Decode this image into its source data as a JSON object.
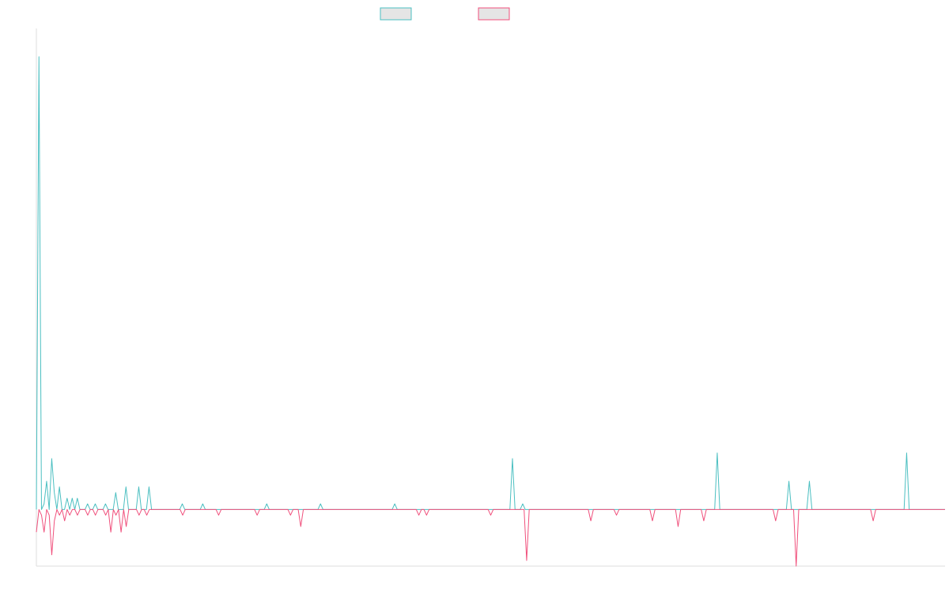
{
  "chart_data": {
    "type": "line",
    "title": "",
    "xlabel": "",
    "ylabel": "",
    "grid": false,
    "legend": "top-center",
    "ylim": [
      -10,
      85
    ],
    "colors": {
      "teal": "#4bbfc1",
      "pink": "#f0507c",
      "axis": "#dddddd",
      "legend_fill": "#e5e5e5"
    },
    "series": [
      {
        "color": "#4bbfc1",
        "values": [
          0,
          80,
          0,
          1,
          5,
          0,
          9,
          3,
          0,
          4,
          0,
          0,
          2,
          0,
          2,
          0,
          2,
          0,
          0,
          0,
          1,
          0,
          0,
          1,
          0,
          0,
          0,
          1,
          0,
          0,
          0,
          3,
          0,
          0,
          0,
          4,
          0,
          0,
          0,
          0,
          4,
          0,
          0,
          0,
          4,
          0,
          0,
          0,
          0,
          0,
          0,
          0,
          0,
          0,
          0,
          0,
          0,
          1,
          0,
          0,
          0,
          0,
          0,
          0,
          0,
          1,
          0,
          0,
          0,
          0,
          0,
          0,
          0,
          0,
          0,
          0,
          0,
          0,
          0,
          0,
          0,
          0,
          0,
          0,
          0,
          0,
          0,
          0,
          0,
          0,
          1,
          0,
          0,
          0,
          0,
          0,
          0,
          0,
          0,
          0,
          0,
          0,
          0,
          0,
          0,
          0,
          0,
          0,
          0,
          0,
          0,
          1,
          0,
          0,
          0,
          0,
          0,
          0,
          0,
          0,
          0,
          0,
          0,
          0,
          0,
          0,
          0,
          0,
          0,
          0,
          0,
          0,
          0,
          0,
          0,
          0,
          0,
          0,
          0,
          0,
          1,
          0,
          0,
          0,
          0,
          0,
          0,
          0,
          0,
          0,
          0,
          0,
          0,
          0,
          0,
          0,
          0,
          0,
          0,
          0,
          0,
          0,
          0,
          0,
          0,
          0,
          0,
          0,
          0,
          0,
          0,
          0,
          0,
          0,
          0,
          0,
          0,
          0,
          0,
          0,
          0,
          0,
          0,
          0,
          0,
          0,
          9,
          0,
          0,
          0,
          1,
          0,
          0,
          0,
          0,
          0,
          0,
          0,
          0,
          0,
          0,
          0,
          0,
          0,
          0,
          0,
          0,
          0,
          0,
          0,
          0,
          0,
          0,
          0,
          0,
          0,
          0,
          0,
          0,
          0,
          0,
          0,
          0,
          0,
          0,
          0,
          0,
          0,
          0,
          0,
          0,
          0,
          0,
          0,
          0,
          0,
          0,
          0,
          0,
          0,
          0,
          0,
          0,
          0,
          0,
          0,
          0,
          0,
          0,
          0,
          0,
          0,
          0,
          0,
          0,
          0,
          0,
          0,
          0,
          0,
          0,
          0,
          0,
          0,
          0,
          0,
          10,
          0,
          0,
          0,
          0,
          0,
          0,
          0,
          0,
          0,
          0,
          0,
          0,
          0,
          0,
          0,
          0,
          0,
          0,
          0,
          0,
          0,
          0,
          0,
          0,
          0,
          0,
          0,
          5,
          0,
          0,
          0,
          0,
          0,
          0,
          0,
          5,
          0,
          0,
          0,
          0,
          0,
          0,
          0,
          0,
          0,
          0,
          0,
          0,
          0,
          0,
          0,
          0,
          0,
          0,
          0,
          0,
          0,
          0,
          0,
          0,
          0,
          0,
          0,
          0,
          0,
          0,
          0,
          0,
          0,
          0,
          0,
          0,
          0,
          10,
          0,
          0,
          0,
          0,
          0,
          0,
          0,
          0,
          0,
          0,
          0,
          0,
          0,
          0,
          0
        ]
      },
      {
        "color": "#f0507c",
        "values": [
          -4,
          0,
          -1,
          -4,
          0,
          -1,
          -8,
          -2,
          0,
          -1,
          0,
          -2,
          0,
          -1,
          0,
          0,
          -1,
          0,
          0,
          0,
          -1,
          0,
          0,
          -1,
          0,
          0,
          0,
          -1,
          0,
          -4,
          0,
          -1,
          0,
          -4,
          0,
          -3,
          0,
          0,
          0,
          0,
          -1,
          0,
          0,
          -1,
          0,
          0,
          0,
          0,
          0,
          0,
          0,
          0,
          0,
          0,
          0,
          0,
          0,
          -1,
          0,
          0,
          0,
          0,
          0,
          0,
          0,
          0,
          0,
          0,
          0,
          0,
          0,
          -1,
          0,
          0,
          0,
          0,
          0,
          0,
          0,
          0,
          0,
          0,
          0,
          0,
          0,
          0,
          -1,
          0,
          0,
          0,
          0,
          0,
          0,
          0,
          0,
          0,
          0,
          0,
          0,
          -1,
          0,
          0,
          0,
          -3,
          0,
          0,
          0,
          0,
          0,
          0,
          0,
          0,
          0,
          0,
          0,
          0,
          0,
          0,
          0,
          0,
          0,
          0,
          0,
          0,
          0,
          0,
          0,
          0,
          0,
          0,
          0,
          0,
          0,
          0,
          0,
          0,
          0,
          0,
          0,
          0,
          0,
          0,
          0,
          0,
          0,
          0,
          0,
          0,
          0,
          -1,
          0,
          0,
          -1,
          0,
          0,
          0,
          0,
          0,
          0,
          0,
          0,
          0,
          0,
          0,
          0,
          0,
          0,
          0,
          0,
          0,
          0,
          0,
          0,
          0,
          0,
          0,
          0,
          -1,
          0,
          0,
          0,
          0,
          0,
          0,
          0,
          0,
          0,
          0,
          0,
          0,
          0,
          -9,
          0,
          0,
          0,
          0,
          0,
          0,
          0,
          0,
          0,
          0,
          0,
          0,
          0,
          0,
          0,
          0,
          0,
          0,
          0,
          0,
          0,
          0,
          0,
          0,
          -2,
          0,
          0,
          0,
          0,
          0,
          0,
          0,
          0,
          0,
          -1,
          0,
          0,
          0,
          0,
          0,
          0,
          0,
          0,
          0,
          0,
          0,
          0,
          0,
          -2,
          0,
          0,
          0,
          0,
          0,
          0,
          0,
          0,
          0,
          -3,
          0,
          0,
          0,
          0,
          0,
          0,
          0,
          0,
          0,
          -2,
          0,
          0,
          0,
          0,
          0,
          0,
          0,
          0,
          0,
          0,
          0,
          0,
          0,
          0,
          0,
          0,
          0,
          0,
          0,
          0,
          0,
          0,
          0,
          0,
          0,
          0,
          0,
          -2,
          0,
          0,
          0,
          0,
          0,
          0,
          0,
          -10,
          0,
          0,
          0,
          0,
          0,
          0,
          0,
          0,
          0,
          0,
          0,
          0,
          0,
          0,
          0,
          0,
          0,
          0,
          0,
          0,
          0,
          0,
          0,
          0,
          0,
          0,
          0,
          0,
          0,
          -2,
          0,
          0,
          0,
          0,
          0,
          0,
          0,
          0,
          0,
          0,
          0,
          0,
          0,
          0,
          0,
          0,
          0,
          0,
          0,
          0,
          0,
          0,
          0,
          0,
          0,
          0,
          0,
          0
        ]
      }
    ]
  }
}
